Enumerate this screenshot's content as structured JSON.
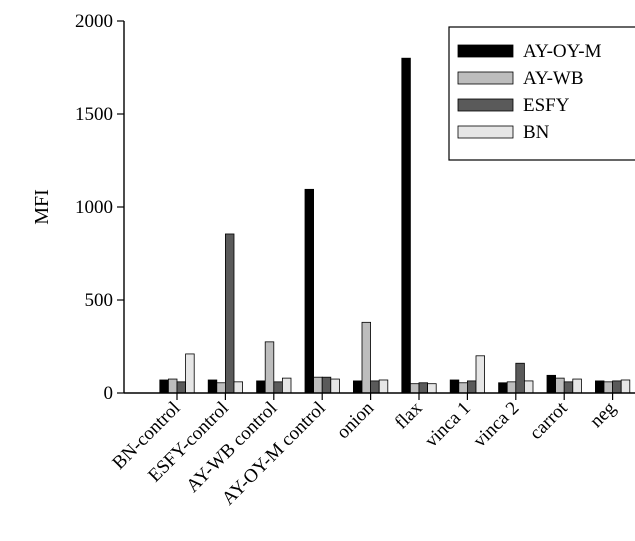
{
  "chart_data": {
    "type": "bar",
    "ylabel": "MFI",
    "xlabel": "",
    "title": "",
    "ylim": [
      0,
      2000
    ],
    "yticks": [
      0,
      500,
      1000,
      1500,
      2000
    ],
    "grid": false,
    "legend_position": "top-right",
    "categories": [
      "BN-control",
      "ESFY-control",
      "AY-WB control",
      "AY-OY-M control",
      "onion",
      "flax",
      "vinca 1",
      "vinca 2",
      "carrot",
      "neg"
    ],
    "series": [
      {
        "name": "AY-OY-M",
        "color": "#000000",
        "values": [
          70,
          70,
          65,
          1095,
          65,
          1800,
          70,
          55,
          95,
          65
        ]
      },
      {
        "name": "AY-WB",
        "color": "#bdbdbd",
        "values": [
          75,
          55,
          275,
          85,
          380,
          50,
          55,
          60,
          80,
          60
        ]
      },
      {
        "name": "ESFY",
        "color": "#5a5a5a",
        "values": [
          60,
          855,
          60,
          85,
          65,
          55,
          65,
          160,
          60,
          65
        ]
      },
      {
        "name": "BN",
        "color": "#e6e6e6",
        "values": [
          210,
          60,
          80,
          75,
          70,
          50,
          200,
          65,
          75,
          70
        ]
      }
    ]
  }
}
